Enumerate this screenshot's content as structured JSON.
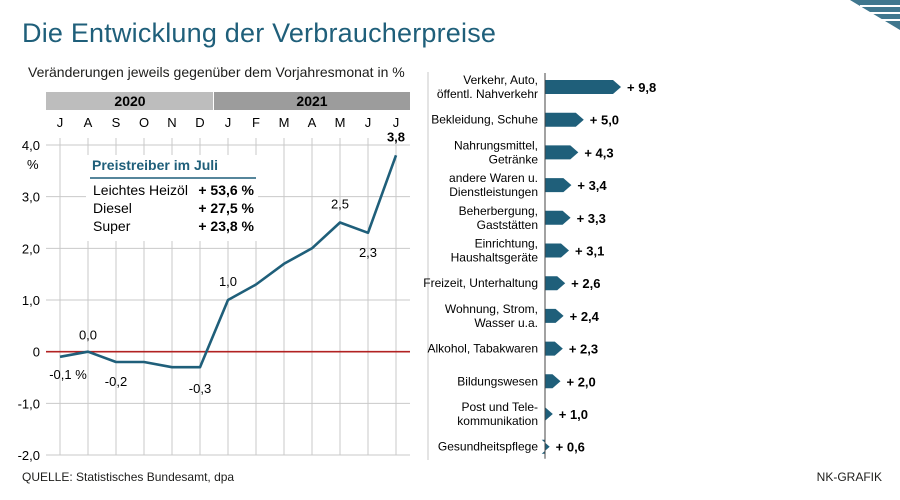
{
  "title": "Die Entwicklung der Verbraucherpreise",
  "subtitle": "Veränderungen jeweils gegenüber dem Vorjahresmonat in %",
  "source": "QUELLE: Statistisches Bundesamt, dpa",
  "credit": "NK-GRAFIK",
  "colors": {
    "accent": "#1f5f7a",
    "line": "#1f5f7a",
    "zero": "#b22222",
    "year_bar": "#bdbdbd",
    "year_bar_2": "#9c9c9c"
  },
  "chart_data": [
    {
      "type": "line",
      "title": "Veränderungen jeweils gegenüber dem Vorjahresmonat in %",
      "years": [
        {
          "label": "2020",
          "months": 6
        },
        {
          "label": "2021",
          "months": 7
        }
      ],
      "categories": [
        "J",
        "A",
        "S",
        "O",
        "N",
        "D",
        "J",
        "F",
        "M",
        "A",
        "M",
        "J",
        "J"
      ],
      "values": [
        -0.1,
        0.0,
        -0.2,
        -0.2,
        -0.3,
        -0.3,
        1.0,
        1.3,
        1.7,
        2.0,
        2.5,
        2.3,
        3.8
      ],
      "data_labels": [
        {
          "index": 0,
          "text": "-0,1 %"
        },
        {
          "index": 1,
          "text": "0,0"
        },
        {
          "index": 2,
          "text": "-0,2"
        },
        {
          "index": 5,
          "text": "-0,3"
        },
        {
          "index": 6,
          "text": "1,0"
        },
        {
          "index": 10,
          "text": "2,5"
        },
        {
          "index": 11,
          "text": "2,3"
        },
        {
          "index": 12,
          "text": "3,8"
        }
      ],
      "y_ticks": [
        4.0,
        3.0,
        2.0,
        1.0,
        0,
        -1.0,
        -2.0
      ],
      "y_tick_labels": [
        "4,0",
        "3,0",
        "2,0",
        "1,0",
        "0",
        "-1,0",
        "-2,0"
      ],
      "y_unit": "%",
      "ylim": [
        -2.0,
        4.0
      ],
      "grid": true,
      "inset": {
        "title": "Preistreiber im Juli",
        "rows": [
          {
            "label": "Leichtes Heizöl",
            "value": "+ 53,6 %"
          },
          {
            "label": "Diesel",
            "value": "+ 27,5 %"
          },
          {
            "label": "Super",
            "value": "+ 23,8 %"
          }
        ]
      }
    },
    {
      "type": "bar",
      "orientation": "horizontal",
      "categories": [
        [
          "Verkehr, Auto,",
          "öffentl. Nahverkehr"
        ],
        [
          "Bekleidung, Schuhe"
        ],
        [
          "Nahrungsmittel,",
          "Getränke"
        ],
        [
          "andere Waren u.",
          "Dienstleistungen"
        ],
        [
          "Beherbergung,",
          "Gaststätten"
        ],
        [
          "Einrichtung,",
          "Haushaltsgeräte"
        ],
        [
          "Freizeit, Unterhaltung"
        ],
        [
          "Wohnung, Strom,",
          "Wasser u.a."
        ],
        [
          "Alkohol, Tabakwaren"
        ],
        [
          "Bildungswesen"
        ],
        [
          "Post und Tele-",
          "kommunikation"
        ],
        [
          "Gesundheitspflege"
        ]
      ],
      "values": [
        9.8,
        5.0,
        4.3,
        3.4,
        3.3,
        3.1,
        2.6,
        2.4,
        2.3,
        2.0,
        1.0,
        0.6
      ],
      "value_labels": [
        "+ 9,8",
        "+ 5,0",
        "+ 4,3",
        "+ 3,4",
        "+ 3,3",
        "+ 3,1",
        "+ 2,6",
        "+ 2,4",
        "+ 2,3",
        "+ 2,0",
        "+ 1,0",
        "+ 0,6"
      ]
    }
  ]
}
